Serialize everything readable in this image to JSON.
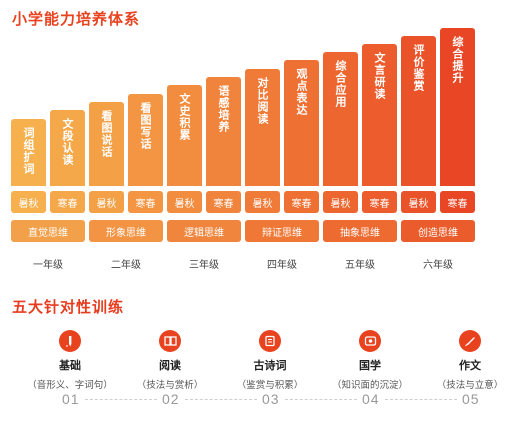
{
  "section1_title": "小学能力培养体系",
  "stairs": [
    {
      "label": "词组扩词",
      "color": "#f6b04e"
    },
    {
      "label": "文段认读",
      "color": "#f5a84a"
    },
    {
      "label": "看图说话",
      "color": "#f4a046"
    },
    {
      "label": "看图写话",
      "color": "#f39542"
    },
    {
      "label": "文史积累",
      "color": "#f28c3f"
    },
    {
      "label": "语感培养",
      "color": "#f1843c"
    },
    {
      "label": "对比阅读",
      "color": "#f07a37"
    },
    {
      "label": "观点表达",
      "color": "#ef7033"
    },
    {
      "label": "综合应用",
      "color": "#ed662f"
    },
    {
      "label": "文言研读",
      "color": "#ec5c2c"
    },
    {
      "label": "评价鉴赏",
      "color": "#ea5229"
    },
    {
      "label": "综合提升",
      "color": "#e84625"
    }
  ],
  "seasons": [
    "暑秋",
    "寒春",
    "暑秋",
    "寒春",
    "暑秋",
    "寒春",
    "暑秋",
    "寒春",
    "暑秋",
    "寒春",
    "暑秋",
    "寒春"
  ],
  "thinking": [
    {
      "label": "直觉思维",
      "color": "#f2a04a"
    },
    {
      "label": "形象思维",
      "color": "#f29444"
    },
    {
      "label": "逻辑思维",
      "color": "#f0863d"
    },
    {
      "label": "辩证思维",
      "color": "#ef7836"
    },
    {
      "label": "抽象思维",
      "color": "#ed6a30"
    },
    {
      "label": "创造思维",
      "color": "#ea5c2b"
    }
  ],
  "grades": [
    "一年级",
    "二年级",
    "三年级",
    "四年级",
    "五年级",
    "六年级"
  ],
  "section2_title": "五大针对性训练",
  "trainings": [
    {
      "title": "基础",
      "sub": "（音形义、字词句）",
      "num": "01",
      "icon": "pen-icon"
    },
    {
      "title": "阅读",
      "sub": "（技法与赏析）",
      "num": "02",
      "icon": "book-icon"
    },
    {
      "title": "古诗词",
      "sub": "（鉴赏与积累）",
      "num": "03",
      "icon": "scroll-icon"
    },
    {
      "title": "国学",
      "sub": "（知识面的沉淀）",
      "num": "04",
      "icon": "seal-icon"
    },
    {
      "title": "作文",
      "sub": "（技法与立意）",
      "num": "05",
      "icon": "quill-icon"
    }
  ]
}
